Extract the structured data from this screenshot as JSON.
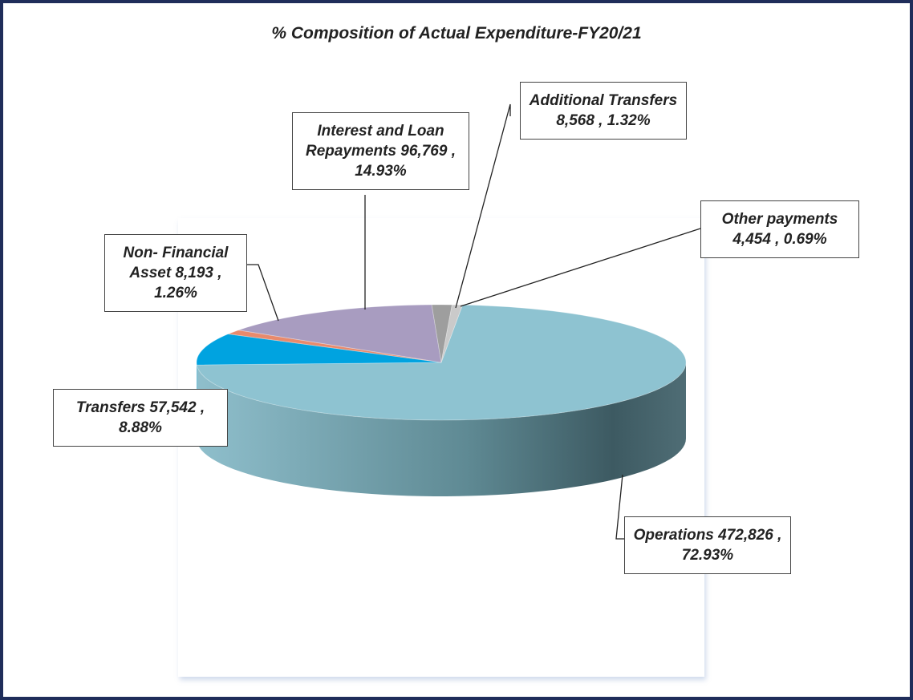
{
  "chart_data": {
    "type": "pie3d",
    "title": "% Composition of Actual Expenditure-FY20/21",
    "categories": [
      "Operations",
      "Transfers",
      "Non- Financial Asset",
      "Interest and Loan Repayments",
      "Additional Transfers",
      "Other payments"
    ],
    "values": [
      472826,
      57542,
      8193,
      96769,
      8568,
      4454
    ],
    "value_labels": [
      "472,826",
      "57,542",
      "8,193",
      "96,769",
      "8,568",
      "4,454"
    ],
    "percents": [
      72.93,
      8.88,
      1.26,
      14.93,
      1.32,
      0.69
    ],
    "percent_labels": [
      "72.93%",
      "8.88%",
      "1.26%",
      "14.93%",
      "1.32%",
      "0.69%"
    ],
    "label_separator": " , ",
    "colors": [
      "#8ec3d1",
      "#00a3e0",
      "#e88a6c",
      "#a89cc0",
      "#9e9e9e",
      "#cacaca"
    ]
  }
}
